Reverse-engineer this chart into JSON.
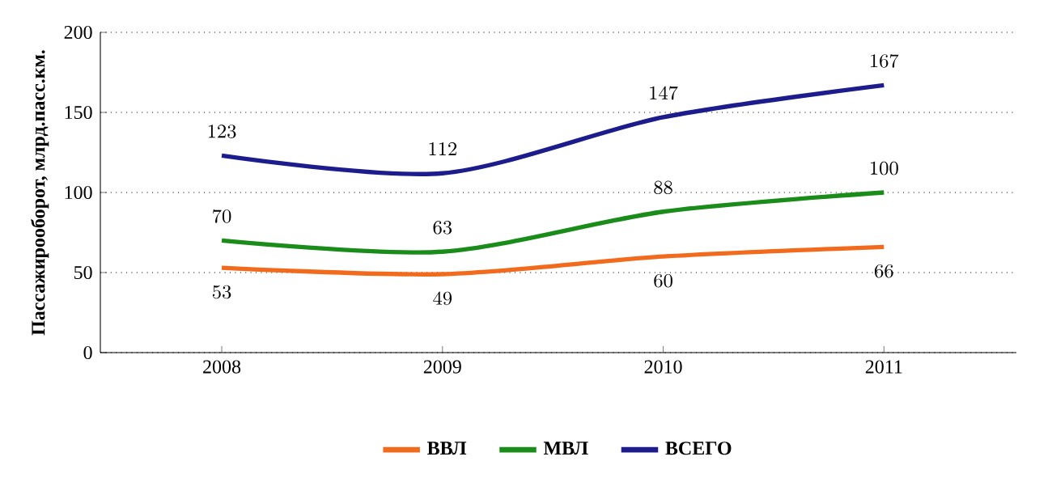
{
  "chart_data": {
    "type": "line",
    "ylabel": "Пассажирооборот, млрд.пасс.км.",
    "categories": [
      "2008",
      "2009",
      "2010",
      "2011"
    ],
    "series": [
      {
        "name": "ВВЛ",
        "color": "#f26b1d",
        "values": [
          53,
          49,
          60,
          66
        ]
      },
      {
        "name": "МВЛ",
        "color": "#1a8c1a",
        "values": [
          70,
          63,
          88,
          100
        ]
      },
      {
        "name": "ВСЕГО",
        "color": "#1c1c8c",
        "values": [
          123,
          112,
          147,
          167
        ]
      }
    ],
    "ylim": [
      0,
      200
    ],
    "yticks": [
      0,
      50,
      100,
      150,
      200
    ],
    "grid": "y",
    "legend": "bottom",
    "data_labels": true,
    "marker": "none",
    "line_style": "solid"
  }
}
